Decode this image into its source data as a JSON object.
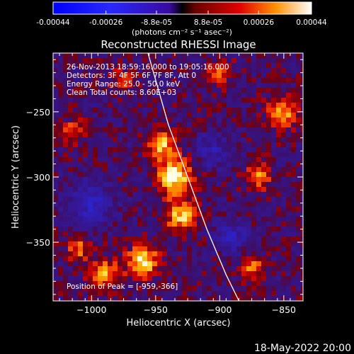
{
  "colorbar": {
    "ticks": [
      "-0.00044",
      "-0.00026",
      "-8.8e-05",
      "8.8e-05",
      "0.00026",
      "0.00044"
    ],
    "tick_values": [
      -0.00044,
      -0.00026,
      -8.8e-05,
      8.8e-05,
      0.00026,
      0.00044
    ],
    "range": [
      -0.00044,
      0.00044
    ],
    "units_label": "(photons cm⁻² s⁻¹ asec⁻²)"
  },
  "chart_data": {
    "type": "heatmap",
    "title": "Reconstructed RHESSI Image",
    "xlabel": "Heliocentric X (arcsec)",
    "ylabel": "Heliocentric Y (arcsec)",
    "xlim": [
      -1030,
      -835
    ],
    "ylim": [
      -395,
      -205
    ],
    "xticks": [
      -1000,
      -950,
      -900,
      -850
    ],
    "xtick_labels": [
      "−1000",
      "−950",
      "−900",
      "−850"
    ],
    "yticks": [
      -250,
      -300,
      -350
    ],
    "ytick_labels": [
      "−250",
      "−300",
      "−350"
    ],
    "annotations": [
      "26-Nov-2013 18:59:16.000 to 19:05:16.000",
      "Detectors: 3F 4F 5F 6F 7F 8F, Att 0",
      "Energy Range: 25.0 - 50.0 keV",
      "Clean    Total counts: 8.60E+03"
    ],
    "peak_label": "Position of Peak = [-959,-366]",
    "peak": [
      -959,
      -366
    ],
    "limb_points": [
      [
        -956,
        -205
      ],
      [
        -940,
        -260
      ],
      [
        -925,
        -300
      ],
      [
        -910,
        -340
      ],
      [
        -895,
        -375
      ],
      [
        -885,
        -395
      ]
    ],
    "sources": [
      {
        "x": -935,
        "y": -300,
        "intensity": 1.0,
        "radius": 14
      },
      {
        "x": -945,
        "y": -275,
        "intensity": 0.75,
        "radius": 11
      },
      {
        "x": -930,
        "y": -330,
        "intensity": 0.8,
        "radius": 12
      },
      {
        "x": -960,
        "y": -365,
        "intensity": 0.95,
        "radius": 12
      },
      {
        "x": -990,
        "y": -375,
        "intensity": 0.7,
        "radius": 12
      },
      {
        "x": -1010,
        "y": -355,
        "intensity": 0.55,
        "radius": 9
      },
      {
        "x": -850,
        "y": -250,
        "intensity": 0.7,
        "radius": 12
      },
      {
        "x": -870,
        "y": -300,
        "intensity": 0.6,
        "radius": 10
      },
      {
        "x": -875,
        "y": -370,
        "intensity": 0.55,
        "radius": 10
      },
      {
        "x": -900,
        "y": -220,
        "intensity": 0.5,
        "radius": 10
      },
      {
        "x": -1015,
        "y": -265,
        "intensity": 0.45,
        "radius": 10
      },
      {
        "x": -975,
        "y": -225,
        "intensity": 0.4,
        "radius": 9
      },
      {
        "x": -1000,
        "y": -320,
        "intensity": -0.6,
        "radius": 16
      },
      {
        "x": -890,
        "y": -345,
        "intensity": -0.55,
        "radius": 12
      },
      {
        "x": -905,
        "y": -280,
        "intensity": -0.45,
        "radius": 13
      }
    ]
  },
  "footer": {
    "date": "18-May-2022 20:00"
  }
}
